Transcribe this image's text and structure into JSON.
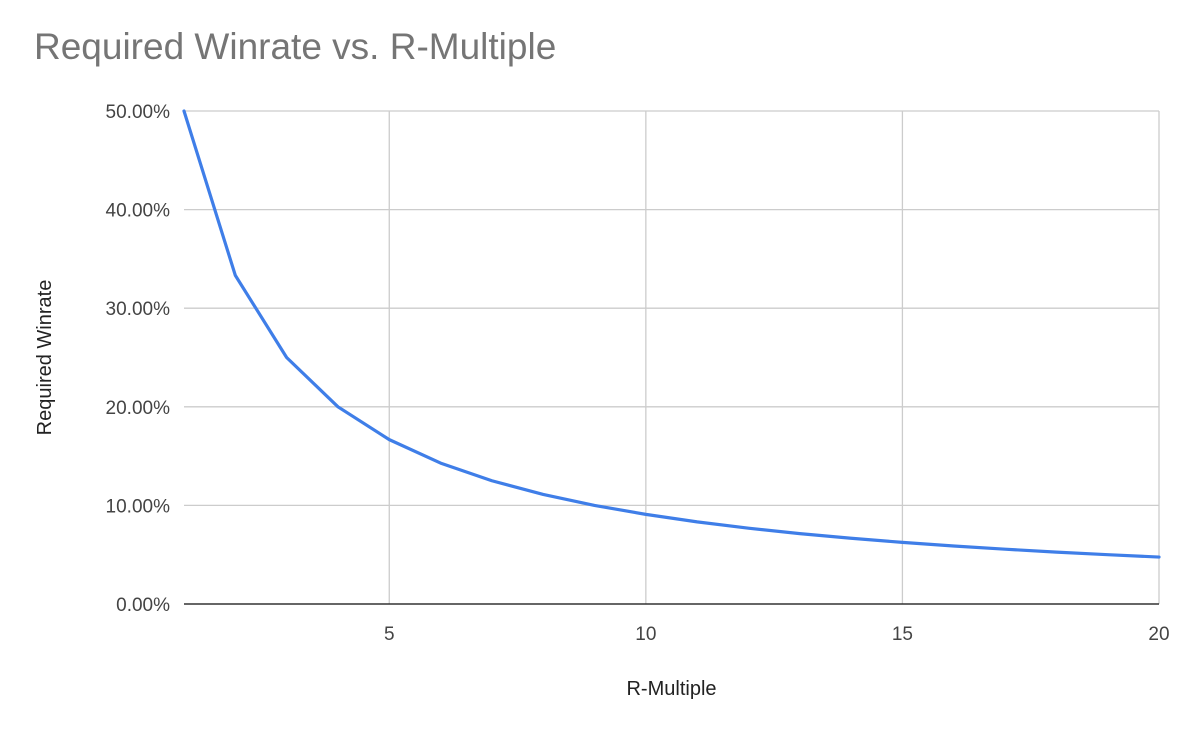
{
  "chart_data": {
    "type": "line",
    "title": "Required Winrate vs. R-Multiple",
    "xlabel": "R-Multiple",
    "ylabel": "Required Winrate",
    "xlim": [
      1,
      20
    ],
    "ylim": [
      0,
      0.5
    ],
    "x_ticks": [
      5,
      10,
      15,
      20
    ],
    "x_tick_labels": [
      "5",
      "10",
      "15",
      "20"
    ],
    "y_ticks": [
      0,
      0.1,
      0.2,
      0.3,
      0.4,
      0.5
    ],
    "y_tick_labels": [
      "0.00%",
      "10.00%",
      "20.00%",
      "30.00%",
      "40.00%",
      "50.00%"
    ],
    "grid": true,
    "series": [
      {
        "color": "#3f7ee8",
        "x": [
          1,
          2,
          3,
          4,
          5,
          6,
          7,
          8,
          9,
          10,
          11,
          12,
          13,
          14,
          15,
          16,
          17,
          18,
          19,
          20
        ],
        "values": [
          0.5,
          0.3333,
          0.25,
          0.2,
          0.1667,
          0.1429,
          0.125,
          0.1111,
          0.1,
          0.0909,
          0.0833,
          0.0769,
          0.0714,
          0.0667,
          0.0625,
          0.0588,
          0.0556,
          0.0526,
          0.05,
          0.0476
        ]
      }
    ]
  }
}
